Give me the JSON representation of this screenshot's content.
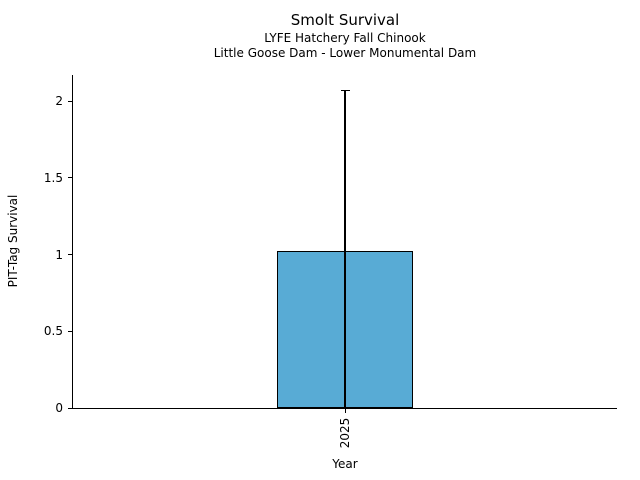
{
  "chart_data": {
    "type": "bar",
    "title": "Smolt Survival",
    "subtitle_line1": "LYFE Hatchery Fall Chinook",
    "subtitle_line2": "Little Goose Dam - Lower Monumental Dam",
    "categories": [
      "2025"
    ],
    "values": [
      1.02
    ],
    "error_upper": [
      2.07
    ],
    "error_lower": [
      0
    ],
    "xlabel": "Year",
    "ylabel": "PIT-Tag Survival",
    "ylim": [
      0,
      2.17
    ],
    "yticks": [
      0,
      0.5,
      1,
      1.5,
      2
    ],
    "ytick_labels": [
      "0",
      "0.5",
      "1",
      "1.5",
      "2"
    ],
    "xtick_rotation_deg": 90,
    "bar_width_fraction": 0.25,
    "bar_color": "#58abd5",
    "bar_edge_color": "#000000",
    "errorbar_color": "#000000",
    "grid": "off",
    "legend": "none",
    "background_color": "#ffffff"
  }
}
